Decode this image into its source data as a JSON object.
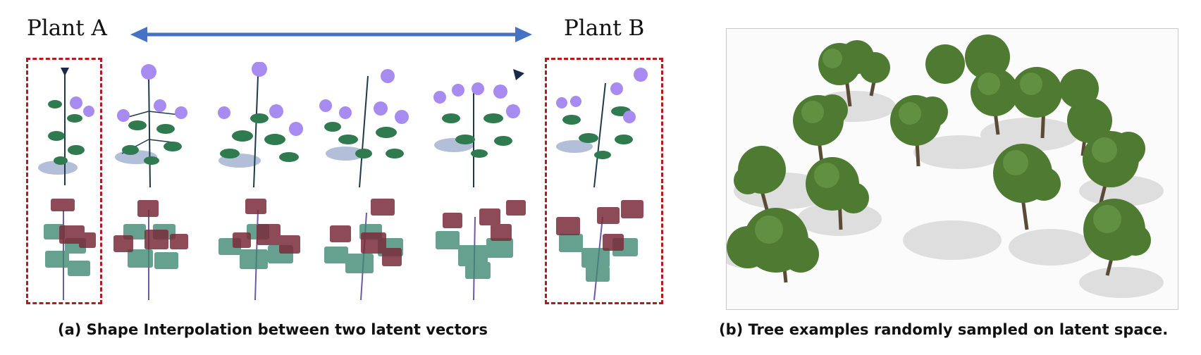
{
  "panel_a": {
    "label_a": "Plant A",
    "label_b": "Plant B",
    "caption": "(a) Shape Interpolation between two latent vectors"
  },
  "panel_b": {
    "caption": "(b) Tree examples randomly sampled on latent space."
  },
  "colors": {
    "arrow": "#4472c4",
    "dashed_box": "#b01c22",
    "leaf": "#2f7a4e",
    "flower": "#a88bf0",
    "proxy_leaf": "#3f8a72",
    "proxy_flower": "#7a2c3a",
    "tree_foliage": "#4e7a32",
    "shadow": "#cfcfcf"
  }
}
